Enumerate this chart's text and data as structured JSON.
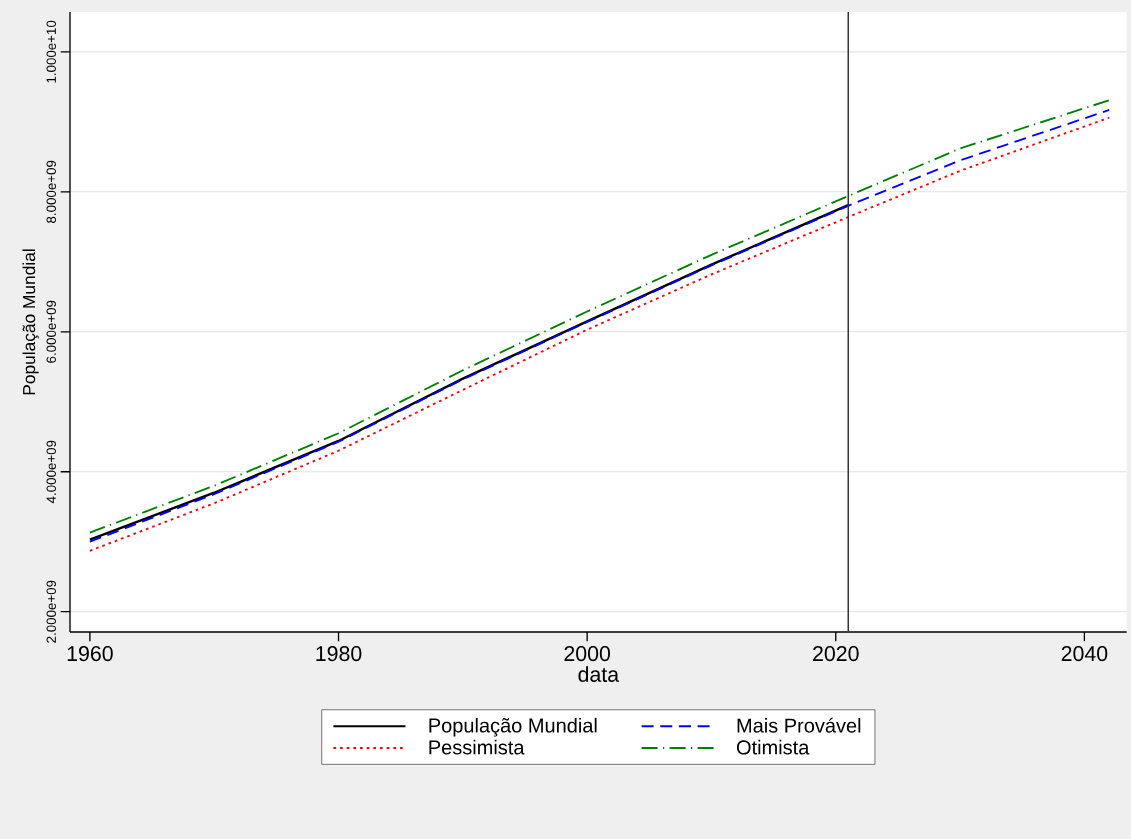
{
  "chart_data": {
    "type": "line",
    "xlabel": "data",
    "ylabel": "População Mundial",
    "xlim": [
      1958.4,
      2043.4
    ],
    "ylim": [
      1710000000,
      10570000000
    ],
    "xticks": [
      1960,
      1980,
      2000,
      2020,
      2040
    ],
    "yticks": [
      {
        "value": 2000000000,
        "label": "2.000e+09"
      },
      {
        "value": 4000000000,
        "label": "4.000e+09"
      },
      {
        "value": 6000000000,
        "label": "6.000e+09"
      },
      {
        "value": 8000000000,
        "label": "8.000e+09"
      },
      {
        "value": 10000000000,
        "label": "1.000e+10"
      }
    ],
    "grid": "y",
    "legend": "bottom",
    "marker": "none",
    "ref_lines": [
      {
        "axis": "x",
        "value": 2021,
        "color": "#333333",
        "line_style": "solid"
      }
    ],
    "series": [
      {
        "name": "População Mundial",
        "color": "#000000",
        "line_style": "solid",
        "x": [
          1960,
          1970,
          1980,
          1990,
          2000,
          2010,
          2021
        ],
        "values": [
          3030000000,
          3700000000,
          4440000000,
          5330000000,
          6150000000,
          6960000000,
          7810000000
        ]
      },
      {
        "name": "Mais Provável",
        "color": "#0000ff",
        "line_style": "dashed",
        "x": [
          1960,
          1970,
          1980,
          1990,
          2000,
          2010,
          2021,
          2030,
          2042
        ],
        "values": [
          3000000000,
          3680000000,
          4430000000,
          5320000000,
          6140000000,
          6950000000,
          7800000000,
          8450000000,
          9170000000
        ]
      },
      {
        "name": "Pessimista",
        "color": "#ff0000",
        "line_style": "dotted",
        "x": [
          1960,
          1970,
          1980,
          1990,
          2000,
          2010,
          2021,
          2030,
          2042
        ],
        "values": [
          2870000000,
          3550000000,
          4300000000,
          5170000000,
          6030000000,
          6820000000,
          7640000000,
          8300000000,
          9060000000
        ]
      },
      {
        "name": "Otimista",
        "color": "#008000",
        "line_style": "dashdot",
        "x": [
          1960,
          1970,
          1980,
          1990,
          2000,
          2010,
          2021,
          2030,
          2042
        ],
        "values": [
          3130000000,
          3800000000,
          4550000000,
          5450000000,
          6290000000,
          7100000000,
          7940000000,
          8620000000,
          9310000000
        ]
      }
    ]
  }
}
